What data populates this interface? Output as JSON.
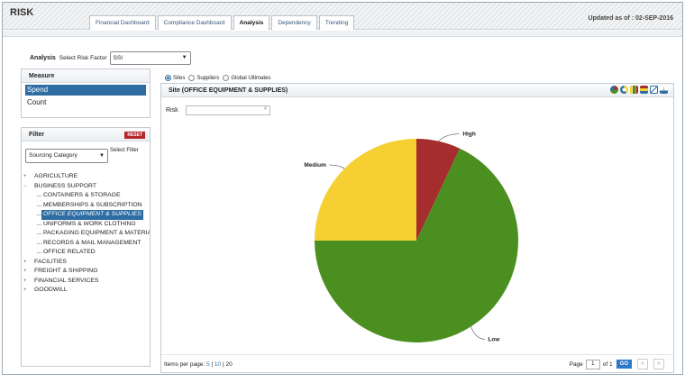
{
  "app": {
    "title": "RISK",
    "updated": "Updated as of : 02-SEP-2016"
  },
  "tabs": [
    {
      "label": "Financial Dashboard",
      "active": false
    },
    {
      "label": "Compliance Dashboard",
      "active": false
    },
    {
      "label": "Analysis",
      "active": true
    },
    {
      "label": "Dependency",
      "active": false
    },
    {
      "label": "Trending",
      "active": false
    }
  ],
  "analysis": {
    "label": "Analysis",
    "select_label": "Select Risk Factor",
    "risk_factor": "SSI"
  },
  "measure": {
    "title": "Measure",
    "items": [
      {
        "label": "Spend",
        "selected": true
      },
      {
        "label": "Count",
        "selected": false
      }
    ]
  },
  "filter": {
    "title": "Filter",
    "reset": "RESET",
    "category": "Sourcing Category",
    "select_filter": "Select Filter",
    "tree": [
      {
        "label": "AGRICULTURE",
        "level": 0,
        "expander": "+"
      },
      {
        "label": "BUSINESS SUPPORT",
        "level": 0,
        "expander": "−"
      },
      {
        "label": "CONTAINERS & STORAGE",
        "level": 1
      },
      {
        "label": "MEMBERSHIPS & SUBSCRIPTION",
        "level": 1
      },
      {
        "label": "OFFICE EQUIPMENT & SUPPLIES",
        "level": 1,
        "selected": true
      },
      {
        "label": "UNIFORMS & WORK CLOTHING",
        "level": 1
      },
      {
        "label": "PACKAGING EQUIPMENT & MATERIALS",
        "level": 1
      },
      {
        "label": "RECORDS & MAIL MANAGEMENT",
        "level": 1
      },
      {
        "label": "OFFICE RELATED",
        "level": 1
      },
      {
        "label": "FACILITIES",
        "level": 0,
        "expander": "+"
      },
      {
        "label": "FREIGHT & SHIPPING",
        "level": 0,
        "expander": "+"
      },
      {
        "label": "FINANCIAL SERVICES",
        "level": 0,
        "expander": "+"
      },
      {
        "label": "GOODWILL",
        "level": 0,
        "expander": "+"
      }
    ]
  },
  "view": {
    "options": [
      {
        "label": "Sites",
        "checked": true
      },
      {
        "label": "Suppliers",
        "checked": false
      },
      {
        "label": "Global Ultimates",
        "checked": false
      }
    ]
  },
  "main": {
    "title": "Site (OFFICE EQUIPMENT & SUPPLIES)",
    "risk_label": "Risk",
    "risk_value": ""
  },
  "toolbar_icons": [
    "pie-chart-icon",
    "donut-chart-icon",
    "bar-chart-icon",
    "stacked-bar-icon",
    "line-chart-icon",
    "download-icon"
  ],
  "chart_data": {
    "type": "pie",
    "slices": [
      {
        "label": "High",
        "value": 7,
        "color": "#a62d2d"
      },
      {
        "label": "Low",
        "value": 68,
        "color": "#4a8f1f"
      },
      {
        "label": "Medium",
        "value": 25,
        "color": "#f6d033"
      }
    ]
  },
  "footer": {
    "items_label": "Items per page:",
    "sizes": [
      "5",
      "10",
      "20"
    ],
    "page_label": "Page",
    "page_value": "1",
    "of_label": "of",
    "total_pages": "1",
    "go": "GO",
    "prev": "«",
    "next": "»"
  }
}
